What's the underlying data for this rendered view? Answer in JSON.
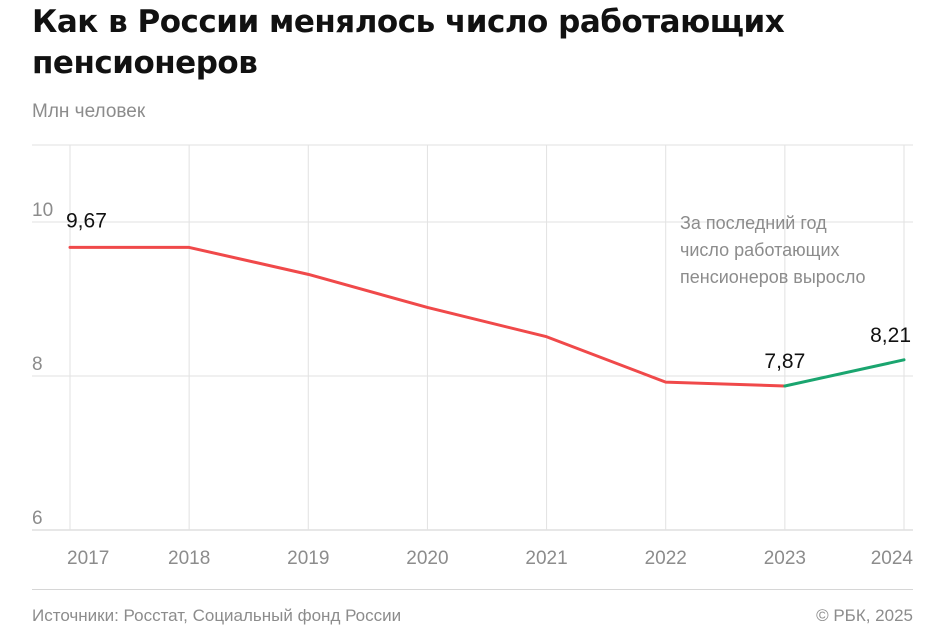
{
  "header": {
    "title": "Как в России менялось число работающих пенсионеров",
    "subtitle": "Млн человек"
  },
  "footer": {
    "source": "Источники: Росстат, Социальный фонд России",
    "copyright": "© РБК, 2025"
  },
  "chart_data": {
    "type": "line",
    "title": "Как в России менялось число работающих пенсионеров",
    "ylabel": "Млн человек",
    "xlabel": "",
    "x": [
      "2017",
      "2018",
      "2019",
      "2020",
      "2021",
      "2022",
      "2023",
      "2024"
    ],
    "series": [
      {
        "values": [
          9.67,
          9.67,
          9.32,
          8.89,
          8.51,
          7.92,
          7.87,
          8.21
        ],
        "color": "#f0494a",
        "highlight_last_segment_color": "#1aa56f"
      }
    ],
    "ylim": [
      6,
      11
    ],
    "yticks": [
      6,
      8,
      10
    ],
    "grid": "vertical and horizontal, light gray",
    "data_labels": [
      {
        "x": "2017",
        "text": "9,67"
      },
      {
        "x": "2023",
        "text": "7,87"
      },
      {
        "x": "2024",
        "text": "8,21"
      }
    ],
    "annotation": [
      "За последний год",
      "число работающих",
      "пенсионеров выросло"
    ]
  }
}
